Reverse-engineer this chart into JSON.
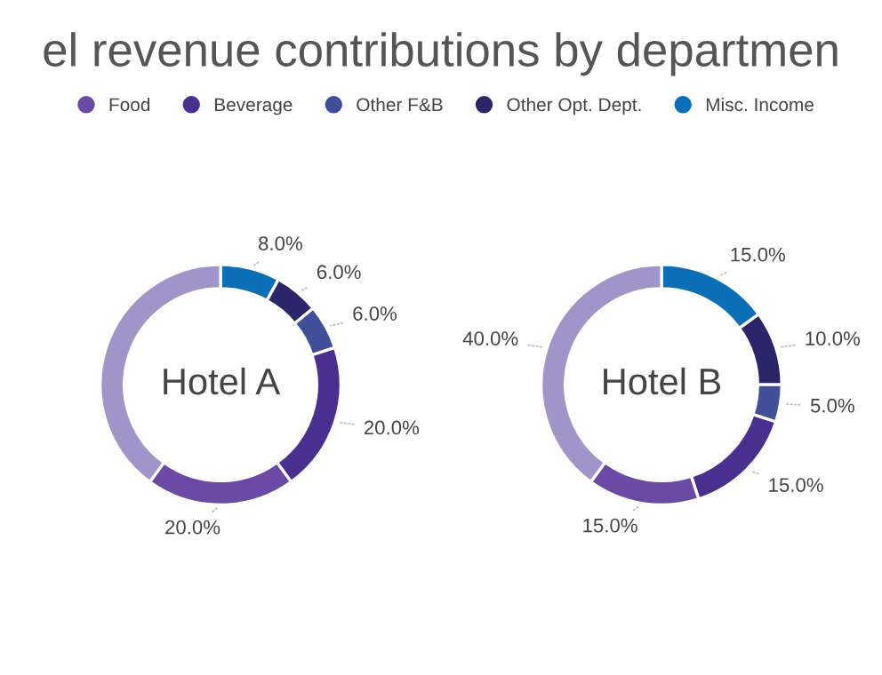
{
  "chart_data": [
    {
      "type": "donut",
      "title": "el revenue contributions by departmen",
      "annotations": [
        "Hotel A"
      ],
      "legend": "top",
      "categories": [
        "Misc. Income",
        "Other Opt. Dept.",
        "Other F&B",
        "Beverage",
        "Food",
        null
      ],
      "values": [
        8,
        6,
        6,
        20,
        20,
        40
      ],
      "value_labels": [
        "8.0%",
        "6.0%",
        "6.0%",
        "20.0%",
        "20.0%",
        null
      ],
      "colors": [
        "#0a6fb6",
        "#29266a",
        "#414f98",
        "#4a2f8e",
        "#6a4aa5",
        "#a194c8"
      ]
    },
    {
      "type": "donut",
      "annotations": [
        "Hotel B"
      ],
      "categories": [
        null,
        null,
        null,
        null,
        null,
        null
      ],
      "values": [
        15,
        10,
        5,
        15,
        15,
        40
      ],
      "value_labels": [
        "15.0%",
        "10.0%",
        "5.0%",
        "15.0%",
        "15.0%",
        "40.0%"
      ],
      "colors": [
        "#0a6fb6",
        "#29266a",
        "#414f98",
        "#4a2f8e",
        "#6a4aa5",
        "#a194c8"
      ]
    }
  ]
}
